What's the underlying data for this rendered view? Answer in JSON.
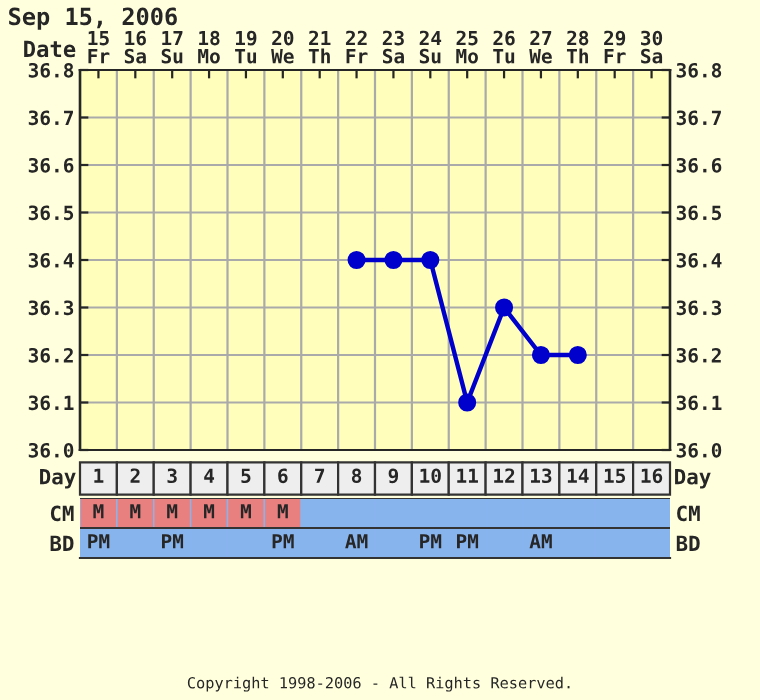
{
  "chart_data": [
    {
      "type": "line",
      "title": "Sep 15, 2006",
      "x": [
        8,
        9,
        10,
        11,
        12,
        13,
        14
      ],
      "series": [
        {
          "color": "#0000cc",
          "values": [
            36.4,
            36.4,
            36.4,
            36.1,
            36.3,
            36.2,
            36.2
          ]
        }
      ],
      "xlabel": "Day",
      "x2label": "Date",
      "xlim": [
        0.5,
        16.5
      ],
      "xticks": [
        1,
        2,
        3,
        4,
        5,
        6,
        7,
        8,
        9,
        10,
        11,
        12,
        13,
        14,
        15,
        16
      ],
      "x2lim": [
        14.5,
        30.5
      ],
      "x2ticks": [
        {
          "value": 15,
          "label": "15\nFr"
        },
        {
          "value": 16,
          "label": "16\nSa"
        },
        {
          "value": 17,
          "label": "17\nSu"
        },
        {
          "value": 18,
          "label": "18\nMo"
        },
        {
          "value": 19,
          "label": "19\nTu"
        },
        {
          "value": 20,
          "label": "20\nWe"
        },
        {
          "value": 21,
          "label": "21\nTh"
        },
        {
          "value": 22,
          "label": "22\nFr"
        },
        {
          "value": 23,
          "label": "23\nSa"
        },
        {
          "value": 24,
          "label": "24\nSu"
        },
        {
          "value": 25,
          "label": "25\nMo"
        },
        {
          "value": 26,
          "label": "26\nTu"
        },
        {
          "value": 27,
          "label": "27\nWe"
        },
        {
          "value": 28,
          "label": "28\nTh"
        },
        {
          "value": 29,
          "label": "29\nFr"
        },
        {
          "value": 30,
          "label": "30\nSa"
        }
      ],
      "ylim": [
        36.0,
        36.8
      ],
      "yticks": [
        {
          "value": 36.0,
          "label": "36.0"
        },
        {
          "value": 36.1,
          "label": "36.1"
        },
        {
          "value": 36.2,
          "label": "36.2"
        },
        {
          "value": 36.3,
          "label": "36.3"
        },
        {
          "value": 36.4,
          "label": "36.4"
        },
        {
          "value": 36.5,
          "label": "36.5"
        },
        {
          "value": 36.6,
          "label": "36.6"
        },
        {
          "value": 36.7,
          "label": "36.7"
        },
        {
          "value": 36.8,
          "label": "36.8"
        }
      ],
      "y2lim": [
        36.0,
        36.8
      ],
      "y2ticks": [
        {
          "value": 36.0,
          "label": "36.0"
        },
        {
          "value": 36.1,
          "label": "36.1"
        },
        {
          "value": 36.2,
          "label": "36.2"
        },
        {
          "value": 36.3,
          "label": "36.3"
        },
        {
          "value": 36.4,
          "label": "36.4"
        },
        {
          "value": 36.5,
          "label": "36.5"
        },
        {
          "value": 36.6,
          "label": "36.6"
        },
        {
          "value": 36.7,
          "label": "36.7"
        },
        {
          "value": 36.8,
          "label": "36.8"
        }
      ],
      "grid": true,
      "marker": "circle",
      "line_style": "solid"
    },
    {
      "type": "heatmap",
      "categories": [
        null,
        null,
        null,
        null,
        null,
        null,
        null,
        null,
        null,
        null,
        null,
        null,
        null,
        null,
        null,
        null
      ],
      "y_categories": [
        "CM",
        "BD"
      ],
      "y2_categories": [
        "CM",
        "BD"
      ],
      "cells": [
        [
          null,
          null,
          null,
          null,
          null,
          null,
          null,
          null,
          null,
          null,
          null,
          null,
          null,
          null,
          null,
          null
        ],
        [
          null,
          null,
          null,
          null,
          null,
          null,
          null,
          null,
          null,
          null,
          null,
          null,
          null,
          null,
          null,
          null
        ]
      ],
      "cell_labels": [
        [
          "M",
          "M",
          "M",
          "M",
          "M",
          "M",
          null,
          null,
          null,
          null,
          null,
          null,
          null,
          null,
          null,
          null
        ],
        [
          "PM",
          null,
          "PM",
          null,
          null,
          "PM",
          null,
          "AM",
          null,
          "PM",
          "PM",
          null,
          "AM",
          null,
          null,
          null
        ]
      ],
      "annotations": [
        "Copyright 1998-2006 - All Rights Reserved."
      ]
    }
  ]
}
